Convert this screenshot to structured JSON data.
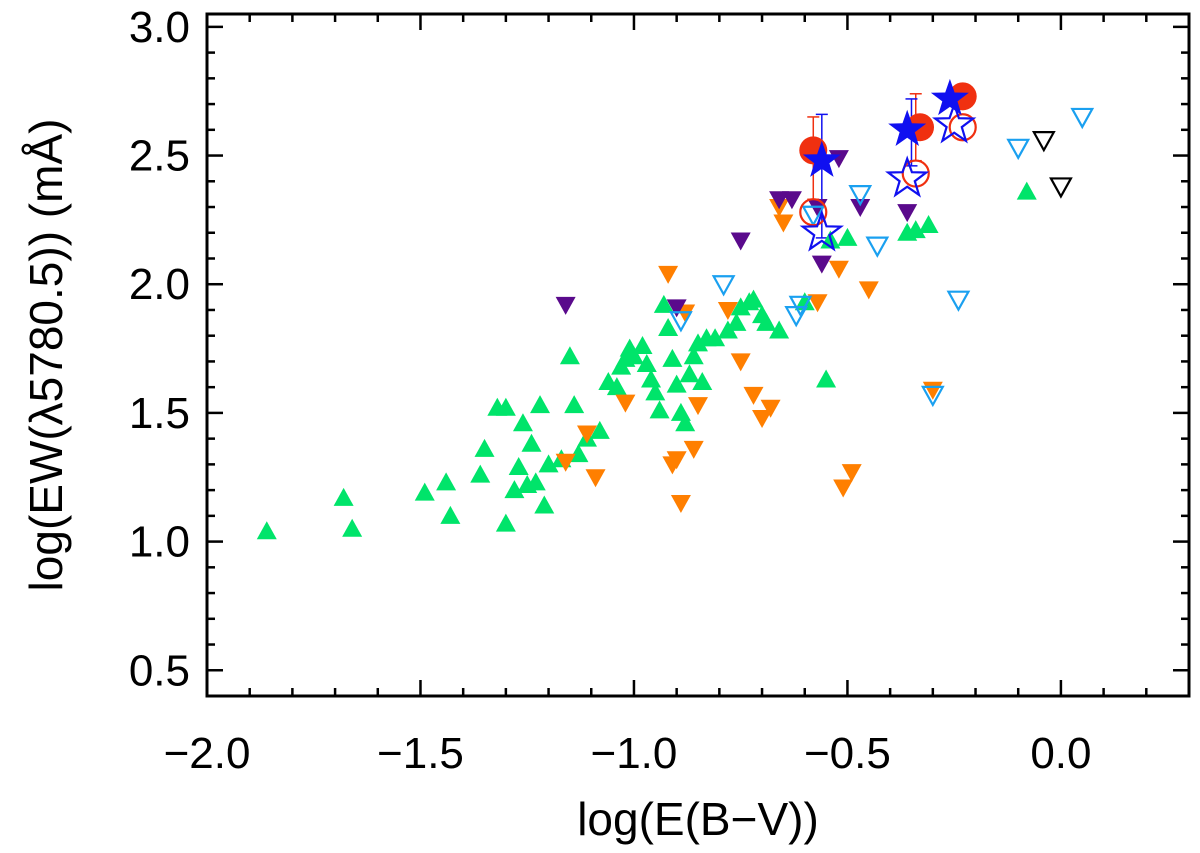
{
  "chart_data": {
    "type": "scatter",
    "title": "",
    "xlabel": "log(E(B−V))",
    "ylabel": "log(EW(λ5780.5)) (mÅ)",
    "xlim": [
      -2.0,
      0.3
    ],
    "ylim": [
      0.4,
      3.05
    ],
    "x_ticks": [
      -2.0,
      -1.5,
      -1.0,
      -0.5,
      0.0
    ],
    "x_tick_labels": [
      "−2.0",
      "−1.5",
      "−1.0",
      "−0.5",
      "0.0"
    ],
    "y_ticks": [
      0.5,
      1.0,
      1.5,
      2.0,
      2.5,
      3.0
    ],
    "y_tick_labels": [
      "0.5",
      "1.0",
      "1.5",
      "2.0",
      "2.5",
      "3.0"
    ],
    "grid": false,
    "colors": {
      "green": "#00e46a",
      "orange": "#ff7f00",
      "purple": "#5a0a8c",
      "lightblue": "#1aa0f0",
      "black": "#000000",
      "red": "#f03010",
      "blue": "#1010f0"
    },
    "series": [
      {
        "name": "green-filled-triangles",
        "marker": "triangle-up-filled",
        "color": "green",
        "points": [
          [
            -1.86,
            1.04
          ],
          [
            -1.68,
            1.17
          ],
          [
            -1.66,
            1.05
          ],
          [
            -1.49,
            1.19
          ],
          [
            -1.44,
            1.23
          ],
          [
            -1.43,
            1.1
          ],
          [
            -1.36,
            1.26
          ],
          [
            -1.35,
            1.36
          ],
          [
            -1.32,
            1.52
          ],
          [
            -1.3,
            1.52
          ],
          [
            -1.3,
            1.07
          ],
          [
            -1.28,
            1.2
          ],
          [
            -1.27,
            1.29
          ],
          [
            -1.26,
            1.46
          ],
          [
            -1.25,
            1.22
          ],
          [
            -1.24,
            1.38
          ],
          [
            -1.23,
            1.23
          ],
          [
            -1.22,
            1.53
          ],
          [
            -1.21,
            1.14
          ],
          [
            -1.2,
            1.3
          ],
          [
            -1.17,
            1.32
          ],
          [
            -1.15,
            1.72
          ],
          [
            -1.14,
            1.53
          ],
          [
            -1.13,
            1.34
          ],
          [
            -1.11,
            1.4
          ],
          [
            -1.08,
            1.43
          ],
          [
            -1.06,
            1.62
          ],
          [
            -1.04,
            1.6
          ],
          [
            -1.03,
            1.68
          ],
          [
            -1.02,
            1.71
          ],
          [
            -1.01,
            1.75
          ],
          [
            -1.0,
            1.72
          ],
          [
            -0.98,
            1.76
          ],
          [
            -0.97,
            1.69
          ],
          [
            -0.96,
            1.63
          ],
          [
            -0.95,
            1.58
          ],
          [
            -0.94,
            1.51
          ],
          [
            -0.93,
            1.92
          ],
          [
            -0.92,
            1.83
          ],
          [
            -0.91,
            1.71
          ],
          [
            -0.9,
            1.61
          ],
          [
            -0.89,
            1.5
          ],
          [
            -0.88,
            1.46
          ],
          [
            -0.87,
            1.65
          ],
          [
            -0.86,
            1.72
          ],
          [
            -0.85,
            1.77
          ],
          [
            -0.84,
            1.62
          ],
          [
            -0.83,
            1.79
          ],
          [
            -0.81,
            1.79
          ],
          [
            -0.78,
            1.82
          ],
          [
            -0.76,
            1.85
          ],
          [
            -0.75,
            1.91
          ],
          [
            -0.73,
            1.93
          ],
          [
            -0.72,
            1.94
          ],
          [
            -0.7,
            1.88
          ],
          [
            -0.69,
            1.85
          ],
          [
            -0.66,
            1.82
          ],
          [
            -0.6,
            1.93
          ],
          [
            -0.55,
            1.63
          ],
          [
            -0.54,
            2.17
          ],
          [
            -0.5,
            2.18
          ],
          [
            -0.36,
            2.2
          ],
          [
            -0.34,
            2.21
          ],
          [
            -0.31,
            2.23
          ],
          [
            -0.08,
            2.36
          ]
        ]
      },
      {
        "name": "orange-filled-down-triangles",
        "marker": "triangle-down-filled",
        "color": "orange",
        "points": [
          [
            -1.16,
            1.31
          ],
          [
            -1.11,
            1.42
          ],
          [
            -1.09,
            1.25
          ],
          [
            -1.02,
            1.54
          ],
          [
            -0.92,
            2.04
          ],
          [
            -0.91,
            1.3
          ],
          [
            -0.9,
            1.32
          ],
          [
            -0.89,
            1.15
          ],
          [
            -0.88,
            1.89
          ],
          [
            -0.86,
            1.36
          ],
          [
            -0.85,
            1.53
          ],
          [
            -0.78,
            1.9
          ],
          [
            -0.75,
            1.7
          ],
          [
            -0.72,
            1.57
          ],
          [
            -0.7,
            1.48
          ],
          [
            -0.68,
            1.52
          ],
          [
            -0.66,
            2.3
          ],
          [
            -0.65,
            2.24
          ],
          [
            -0.57,
            1.93
          ],
          [
            -0.52,
            2.06
          ],
          [
            -0.51,
            1.21
          ],
          [
            -0.49,
            1.27
          ],
          [
            -0.45,
            1.98
          ],
          [
            -0.3,
            1.59
          ]
        ]
      },
      {
        "name": "purple-filled-down-triangles",
        "marker": "triangle-down-filled",
        "color": "purple",
        "points": [
          [
            -1.16,
            1.92
          ],
          [
            -0.9,
            1.91
          ],
          [
            -0.75,
            2.17
          ],
          [
            -0.66,
            2.33
          ],
          [
            -0.63,
            2.33
          ],
          [
            -0.57,
            2.3
          ],
          [
            -0.56,
            2.08
          ],
          [
            -0.52,
            2.49
          ],
          [
            -0.47,
            2.3
          ],
          [
            -0.36,
            2.28
          ]
        ]
      },
      {
        "name": "lightblue-open-down-triangles",
        "marker": "triangle-down-open",
        "color": "lightblue",
        "points": [
          [
            -0.89,
            1.86
          ],
          [
            -0.79,
            2.0
          ],
          [
            -0.62,
            1.88
          ],
          [
            -0.61,
            1.92
          ],
          [
            -0.58,
            2.27
          ],
          [
            -0.47,
            2.35
          ],
          [
            -0.43,
            2.15
          ],
          [
            -0.3,
            1.57
          ],
          [
            -0.24,
            1.94
          ],
          [
            -0.1,
            2.53
          ],
          [
            0.05,
            2.65
          ]
        ]
      },
      {
        "name": "black-open-down-triangles",
        "marker": "triangle-down-open",
        "color": "black",
        "points": [
          [
            -0.04,
            2.56
          ],
          [
            0.0,
            2.38
          ]
        ]
      },
      {
        "name": "red-filled-circles",
        "marker": "circle-filled",
        "color": "red",
        "points": [
          [
            -0.58,
            2.52
          ],
          [
            -0.33,
            2.61
          ],
          [
            -0.23,
            2.73
          ]
        ]
      },
      {
        "name": "red-open-circles",
        "marker": "circle-open",
        "color": "red",
        "points": [
          [
            -0.58,
            2.28
          ],
          [
            -0.34,
            2.43
          ],
          [
            -0.23,
            2.61
          ]
        ]
      },
      {
        "name": "blue-filled-stars",
        "marker": "star-filled",
        "color": "blue",
        "points": [
          [
            -0.56,
            2.48
          ],
          [
            -0.36,
            2.6
          ],
          [
            -0.26,
            2.72
          ]
        ]
      },
      {
        "name": "blue-open-stars",
        "marker": "star-open",
        "color": "blue",
        "points": [
          [
            -0.56,
            2.2
          ],
          [
            -0.36,
            2.41
          ],
          [
            -0.25,
            2.62
          ]
        ]
      }
    ],
    "error_bars": [
      {
        "x": -0.58,
        "y_low": 2.33,
        "y_high": 2.65,
        "color": "red"
      },
      {
        "x": -0.56,
        "y_low": 2.18,
        "y_high": 2.66,
        "color": "blue"
      },
      {
        "x": -0.34,
        "y_low": 2.48,
        "y_high": 2.74,
        "color": "red"
      },
      {
        "x": -0.35,
        "y_low": 2.46,
        "y_high": 2.72,
        "color": "blue"
      }
    ]
  }
}
